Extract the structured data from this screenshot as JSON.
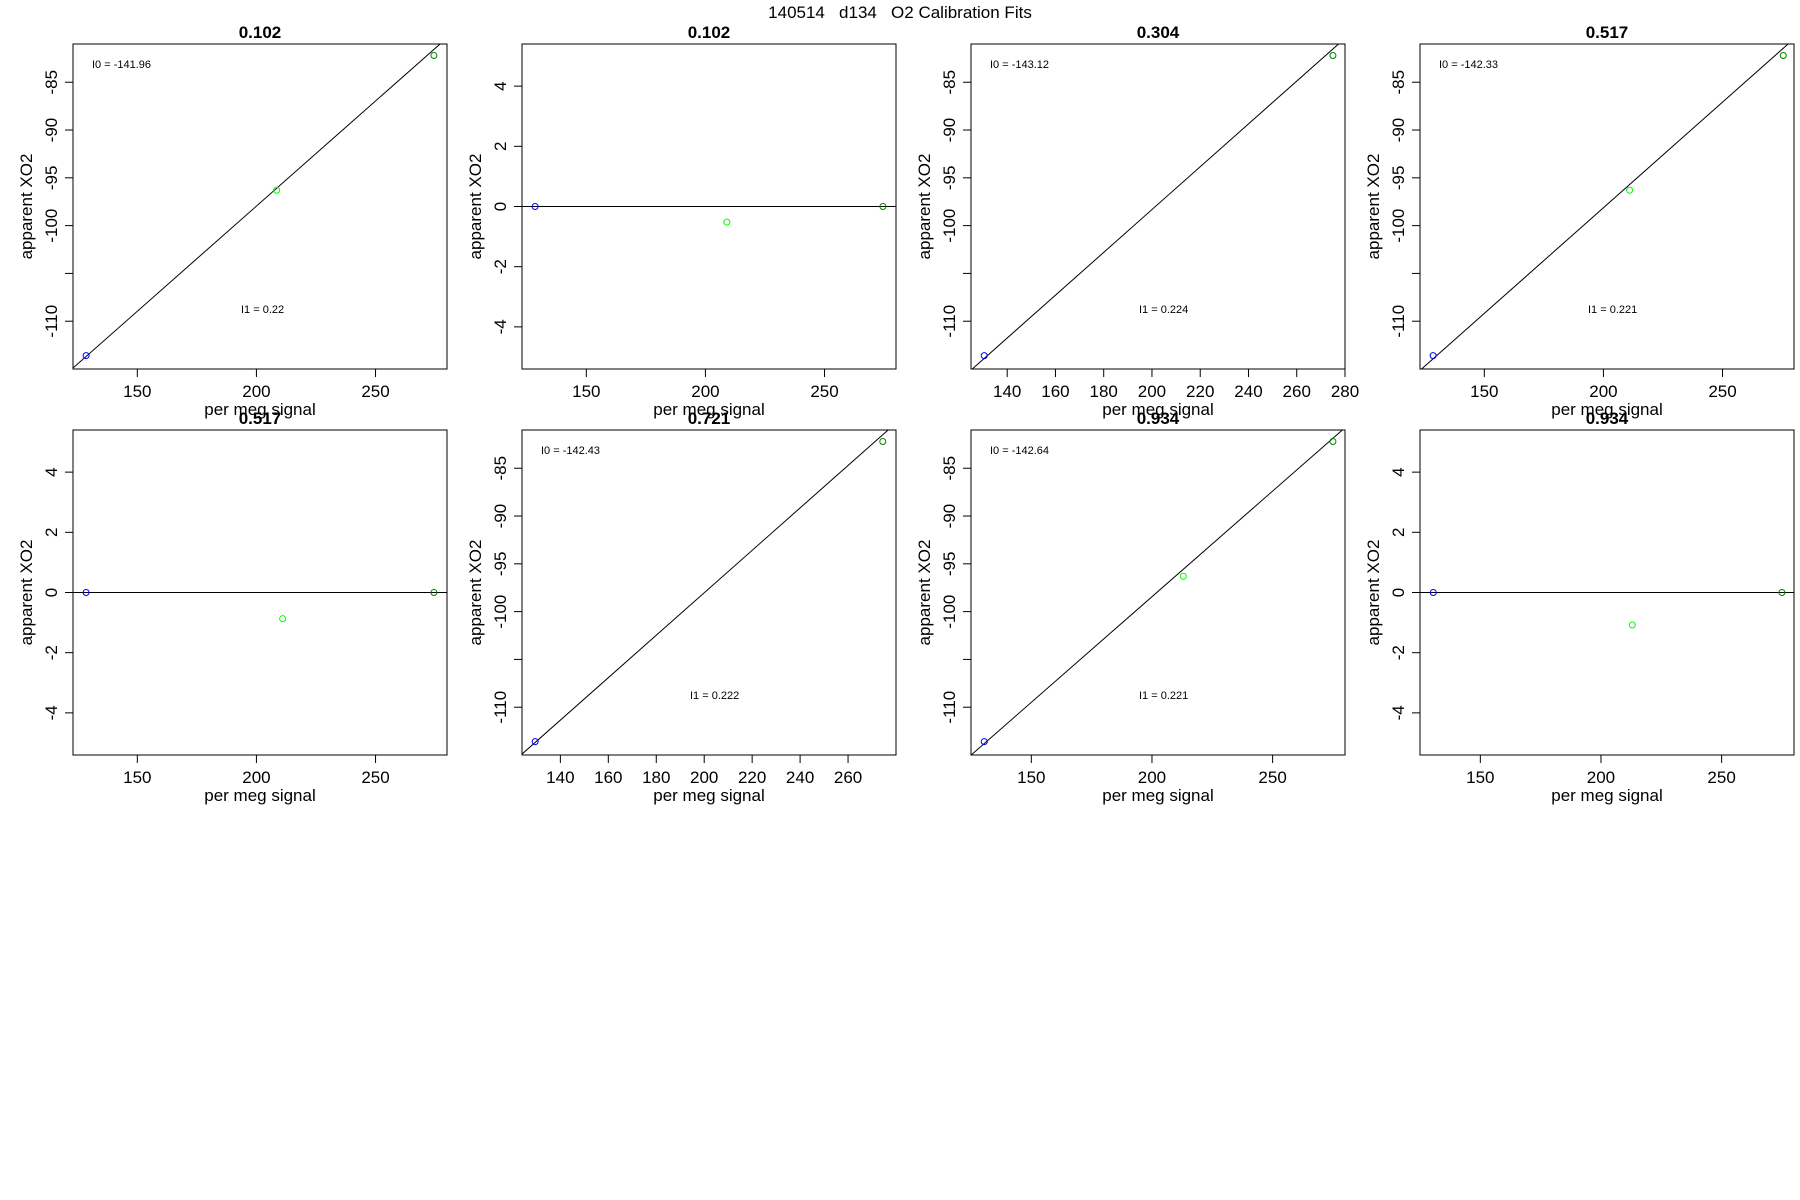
{
  "figure_title": "140514   d134   O2 Calibration Fits",
  "colors": {
    "ref_low": "#0000ff",
    "sample": "#00ff00",
    "ref_high": "#008000",
    "line": "#000000"
  },
  "chart_data": [
    {
      "type": "scatter",
      "title": "0.102",
      "xlabel": "per meg signal",
      "ylabel": "apparent XO2",
      "xlim": [
        123,
        280
      ],
      "ylim": [
        -115,
        -81
      ],
      "xticks": [
        150,
        200,
        250
      ],
      "yticks": [
        -110,
        -100,
        -95,
        -90,
        -85
      ],
      "extra_yticks": [
        -105
      ],
      "points": [
        {
          "x": 128.5,
          "y": -113.6,
          "color": "ref_low"
        },
        {
          "x": 208.5,
          "y": -96.3,
          "color": "sample"
        },
        {
          "x": 274.5,
          "y": -82.2,
          "color": "ref_high"
        }
      ],
      "fit_line": {
        "intercept": -141.96,
        "slope": 0.22
      },
      "annotations": [
        {
          "label": "I0 =  -141.96",
          "pos": "top-left"
        },
        {
          "label": "I1 =  0.22",
          "pos": "center-right"
        }
      ]
    },
    {
      "type": "scatter",
      "title": "0.102",
      "xlabel": "per meg signal",
      "ylabel": "apparent XO2",
      "xlim": [
        123,
        280
      ],
      "ylim": [
        -5.4,
        5.4
      ],
      "xticks": [
        150,
        200,
        250
      ],
      "yticks": [
        -4,
        -2,
        0,
        2,
        4
      ],
      "points": [
        {
          "x": 128.5,
          "y": 0,
          "color": "ref_low"
        },
        {
          "x": 209,
          "y": -0.52,
          "color": "sample"
        },
        {
          "x": 274.5,
          "y": 0,
          "color": "ref_high"
        }
      ],
      "fit_line": {
        "intercept": 0,
        "slope": 0
      },
      "annotations": []
    },
    {
      "type": "scatter",
      "title": "0.304",
      "xlabel": "per meg signal",
      "ylabel": "apparent XO2",
      "xlim": [
        125,
        280
      ],
      "ylim": [
        -115,
        -81
      ],
      "xticks": [
        140,
        160,
        180,
        200,
        220,
        240,
        260,
        280
      ],
      "yticks": [
        -110,
        -100,
        -95,
        -90,
        -85
      ],
      "extra_yticks": [
        -105
      ],
      "points": [
        {
          "x": 130.5,
          "y": -113.6,
          "color": "ref_low"
        },
        {
          "x": 275,
          "y": -82.2,
          "color": "ref_high"
        }
      ],
      "fit_line": {
        "intercept": -143.12,
        "slope": 0.224
      },
      "annotations": [
        {
          "label": "I0 =  -143.12",
          "pos": "top-left"
        },
        {
          "label": "I1 =  0.224",
          "pos": "center-right"
        }
      ]
    },
    {
      "type": "scatter",
      "title": "0.517",
      "xlabel": "per meg signal",
      "ylabel": "apparent XO2",
      "xlim": [
        123,
        280
      ],
      "ylim": [
        -115,
        -81
      ],
      "xticks": [
        150,
        200,
        250
      ],
      "yticks": [
        -110,
        -100,
        -95,
        -90,
        -85
      ],
      "extra_yticks": [
        -105
      ],
      "points": [
        {
          "x": 128.5,
          "y": -113.6,
          "color": "ref_low"
        },
        {
          "x": 211,
          "y": -96.3,
          "color": "sample"
        },
        {
          "x": 275.5,
          "y": -82.2,
          "color": "ref_high"
        }
      ],
      "fit_line": {
        "intercept": -142.33,
        "slope": 0.221
      },
      "annotations": [
        {
          "label": "I0 =  -142.33",
          "pos": "top-left"
        },
        {
          "label": "I1 =  0.221",
          "pos": "center-right"
        }
      ]
    },
    {
      "type": "scatter",
      "title": "0.517",
      "xlabel": "per meg signal",
      "ylabel": "apparent XO2",
      "xlim": [
        123,
        280
      ],
      "ylim": [
        -5.4,
        5.4
      ],
      "xticks": [
        150,
        200,
        250
      ],
      "yticks": [
        -4,
        -2,
        0,
        2,
        4
      ],
      "points": [
        {
          "x": 128.5,
          "y": 0,
          "color": "ref_low"
        },
        {
          "x": 211,
          "y": -0.87,
          "color": "sample"
        },
        {
          "x": 274.5,
          "y": 0,
          "color": "ref_high"
        }
      ],
      "fit_line": {
        "intercept": 0,
        "slope": 0
      },
      "annotations": []
    },
    {
      "type": "scatter",
      "title": "0.721",
      "xlabel": "per meg signal",
      "ylabel": "apparent XO2",
      "xlim": [
        124,
        280
      ],
      "ylim": [
        -115,
        -81
      ],
      "xticks": [
        140,
        160,
        180,
        200,
        220,
        240,
        260
      ],
      "yticks": [
        -110,
        -100,
        -95,
        -90,
        -85
      ],
      "extra_yticks": [
        -105
      ],
      "points": [
        {
          "x": 129.5,
          "y": -113.6,
          "color": "ref_low"
        },
        {
          "x": 274.5,
          "y": -82.2,
          "color": "ref_high"
        }
      ],
      "fit_line": {
        "intercept": -142.43,
        "slope": 0.222
      },
      "annotations": [
        {
          "label": "I0 =  -142.43",
          "pos": "top-left"
        },
        {
          "label": "I1 =  0.222",
          "pos": "center-right"
        }
      ]
    },
    {
      "type": "scatter",
      "title": "0.934",
      "xlabel": "per meg signal",
      "ylabel": "apparent XO2",
      "xlim": [
        125,
        280
      ],
      "ylim": [
        -115,
        -81
      ],
      "xticks": [
        150,
        200,
        250
      ],
      "yticks": [
        -110,
        -100,
        -95,
        -90,
        -85
      ],
      "extra_yticks": [
        -105
      ],
      "points": [
        {
          "x": 130.5,
          "y": -113.6,
          "color": "ref_low"
        },
        {
          "x": 213,
          "y": -96.3,
          "color": "sample"
        },
        {
          "x": 275,
          "y": -82.2,
          "color": "ref_high"
        }
      ],
      "fit_line": {
        "intercept": -142.64,
        "slope": 0.221
      },
      "annotations": [
        {
          "label": "I0 =  -142.64",
          "pos": "top-left"
        },
        {
          "label": "I1 =  0.221",
          "pos": "center-right"
        }
      ]
    },
    {
      "type": "scatter",
      "title": "0.934",
      "xlabel": "per meg signal",
      "ylabel": "apparent XO2",
      "xlim": [
        125,
        280
      ],
      "ylim": [
        -5.4,
        5.4
      ],
      "xticks": [
        150,
        200,
        250
      ],
      "yticks": [
        -4,
        -2,
        0,
        2,
        4
      ],
      "points": [
        {
          "x": 130.5,
          "y": 0,
          "color": "ref_low"
        },
        {
          "x": 213,
          "y": -1.08,
          "color": "sample"
        },
        {
          "x": 275,
          "y": 0,
          "color": "ref_high"
        }
      ],
      "fit_line": {
        "intercept": 0,
        "slope": 0
      },
      "annotations": []
    }
  ]
}
